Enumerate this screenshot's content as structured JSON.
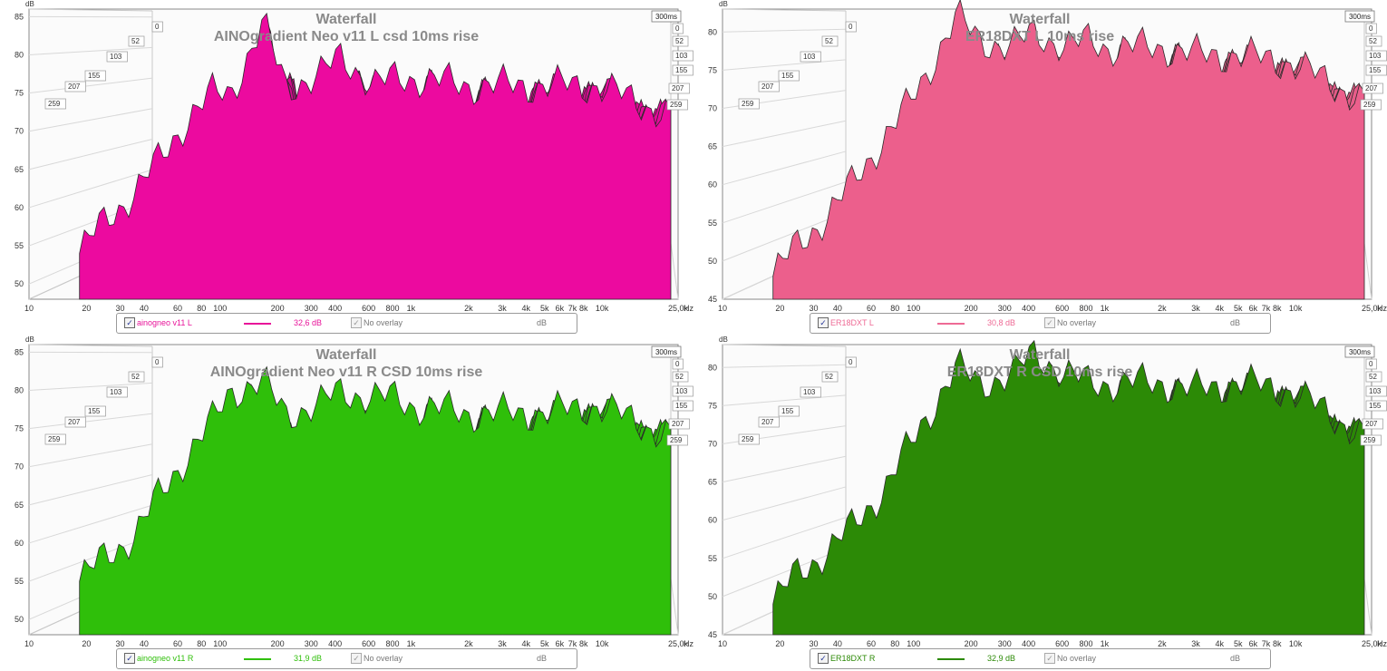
{
  "charts": [
    {
      "title": "Waterfall",
      "subtitle": "AINOgradient Neo v11 L csd 10ms rise",
      "y_unit": "dB",
      "x_unit": "Hz",
      "time_label": "300ms",
      "time_ticks": [
        "0",
        "52",
        "103",
        "155",
        "207",
        "259"
      ],
      "y_ticks": [
        "85",
        "80",
        "75",
        "70",
        "65",
        "60",
        "55",
        "50"
      ],
      "x_ticks": [
        "10",
        "20",
        "30",
        "40",
        "60",
        "80",
        "100",
        "200",
        "300",
        "400",
        "600",
        "800",
        "1k",
        "2k",
        "3k",
        "4k",
        "5k",
        "6k",
        "7k",
        "8k",
        "10k",
        "25,0k"
      ],
      "fill_color": "#ec0a9f",
      "legend": {
        "name": "ainogneo v11 L",
        "value": "32,6 dB",
        "overlay": "No overlay",
        "unit": "dB",
        "color": "#e8149a"
      },
      "chart_data": {
        "type": "area",
        "x_scale": "log",
        "xlim": [
          10,
          25000
        ],
        "ylim": [
          48,
          86
        ],
        "x": [
          15,
          20,
          30,
          40,
          60,
          80,
          100,
          150,
          200,
          300,
          400,
          600,
          800,
          1000,
          2000,
          3000,
          5000,
          10000,
          25000
        ],
        "first_slice_db": [
          54,
          58,
          62,
          66,
          72,
          75,
          75,
          84,
          76,
          77,
          80,
          76,
          77,
          77,
          76,
          76,
          76,
          76,
          72
        ]
      }
    },
    {
      "title": "Waterfall",
      "subtitle": "ER18DXT L 10ms rise",
      "y_unit": "dB",
      "x_unit": "Hz",
      "time_label": "300ms",
      "time_ticks": [
        "0",
        "52",
        "103",
        "155",
        "207",
        "259"
      ],
      "y_ticks": [
        "80",
        "75",
        "70",
        "65",
        "60",
        "55",
        "50",
        "45"
      ],
      "x_ticks": [
        "10",
        "20",
        "30",
        "40",
        "60",
        "80",
        "100",
        "200",
        "300",
        "400",
        "600",
        "800",
        "1k",
        "2k",
        "3k",
        "4k",
        "5k",
        "6k",
        "7k",
        "8k",
        "10k",
        "25,0k"
      ],
      "fill_color": "#ec5f8c",
      "legend": {
        "name": "ER18DXT L",
        "value": "30,8 dB",
        "overlay": "No overlay",
        "unit": "dB",
        "color": "#ee6a95"
      },
      "chart_data": {
        "type": "area",
        "x_scale": "log",
        "xlim": [
          10,
          25000
        ],
        "ylim": [
          45,
          83
        ],
        "x": [
          15,
          20,
          30,
          40,
          60,
          80,
          100,
          150,
          200,
          300,
          400,
          600,
          800,
          1000,
          2000,
          3000,
          5000,
          10000,
          25000
        ],
        "first_slice_db": [
          48,
          52,
          56,
          60,
          66,
          70,
          74,
          82,
          79,
          78,
          80,
          78,
          79,
          78,
          78,
          77,
          77,
          76,
          71
        ]
      }
    },
    {
      "title": "Waterfall",
      "subtitle": "AINOgradient Neo v11 R CSD 10ms rise",
      "y_unit": "dB",
      "x_unit": "Hz",
      "time_label": "300ms",
      "time_ticks": [
        "0",
        "52",
        "103",
        "155",
        "207",
        "259"
      ],
      "y_ticks": [
        "85",
        "80",
        "75",
        "70",
        "65",
        "60",
        "55",
        "50"
      ],
      "x_ticks": [
        "10",
        "20",
        "30",
        "40",
        "60",
        "80",
        "100",
        "200",
        "300",
        "400",
        "600",
        "800",
        "1k",
        "2k",
        "3k",
        "4k",
        "5k",
        "6k",
        "7k",
        "8k",
        "10k",
        "25,0k"
      ],
      "fill_color": "#2fbf0a",
      "legend": {
        "name": "ainogneo v11 R",
        "value": "31,9 dB",
        "overlay": "No overlay",
        "unit": "dB",
        "color": "#2fbf0a"
      },
      "chart_data": {
        "type": "area",
        "x_scale": "log",
        "xlim": [
          10,
          25000
        ],
        "ylim": [
          48,
          86
        ],
        "x": [
          15,
          20,
          30,
          40,
          60,
          80,
          100,
          150,
          200,
          300,
          400,
          600,
          800,
          1000,
          2000,
          3000,
          5000,
          10000,
          25000
        ],
        "first_slice_db": [
          55,
          58,
          61,
          66,
          72,
          76,
          80,
          81,
          77,
          78,
          80,
          79,
          79,
          78,
          77,
          77,
          77,
          78,
          74
        ]
      }
    },
    {
      "title": "Waterfall",
      "subtitle": "ER18DXT R CSD 10ms rise",
      "y_unit": "dB",
      "x_unit": "Hz",
      "time_label": "300ms",
      "time_ticks": [
        "0",
        "52",
        "103",
        "155",
        "207",
        "259"
      ],
      "y_ticks": [
        "80",
        "75",
        "70",
        "65",
        "60",
        "55",
        "50",
        "45"
      ],
      "x_ticks": [
        "10",
        "20",
        "30",
        "40",
        "60",
        "80",
        "100",
        "200",
        "300",
        "400",
        "600",
        "800",
        "1k",
        "2k",
        "3k",
        "4k",
        "5k",
        "6k",
        "7k",
        "8k",
        "10k",
        "25,0k"
      ],
      "fill_color": "#2c8a06",
      "legend": {
        "name": "ER18DXT R",
        "value": "32,9 dB",
        "overlay": "No overlay",
        "unit": "dB",
        "color": "#2c8a06"
      },
      "chart_data": {
        "type": "area",
        "x_scale": "log",
        "xlim": [
          10,
          25000
        ],
        "ylim": [
          45,
          83
        ],
        "x": [
          15,
          20,
          30,
          40,
          60,
          80,
          100,
          150,
          200,
          300,
          400,
          600,
          800,
          1000,
          2000,
          3000,
          5000,
          10000,
          25000
        ],
        "first_slice_db": [
          49,
          53,
          56,
          59,
          64,
          69,
          73,
          80,
          78,
          79,
          82,
          79,
          78,
          78,
          78,
          77,
          78,
          77,
          71
        ]
      }
    }
  ]
}
